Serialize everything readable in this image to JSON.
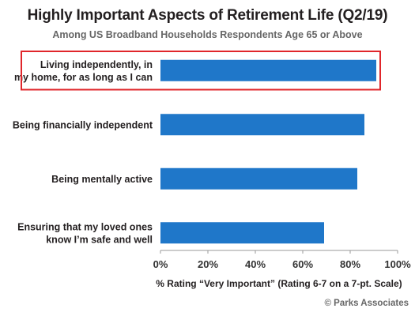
{
  "chart_data": {
    "type": "bar",
    "orientation": "horizontal",
    "title": "Highly Important Aspects of Retirement Life (Q2/19)",
    "subtitle": "Among US Broadband Households Respondents Age 65 or Above",
    "xlabel": "% Rating “Very Important” (Rating 6-7 on a 7-pt. Scale)",
    "ylabel": "",
    "categories": [
      [
        "Living independently, in",
        "my home, for as long as I can"
      ],
      [
        "Being financially independent"
      ],
      [
        "Being mentally active"
      ],
      [
        "Ensuring that my loved ones",
        "know I’m safe and well"
      ]
    ],
    "values": [
      91,
      86,
      83,
      69
    ],
    "xlim": [
      0,
      100
    ],
    "ticks": [
      0,
      20,
      40,
      60,
      80,
      100
    ],
    "tick_suffix": "%",
    "grid": false,
    "bar_color": "#1f77c9",
    "highlight_index": 0,
    "highlight_color": "#e0262b"
  },
  "footer": "© Parks Associates"
}
